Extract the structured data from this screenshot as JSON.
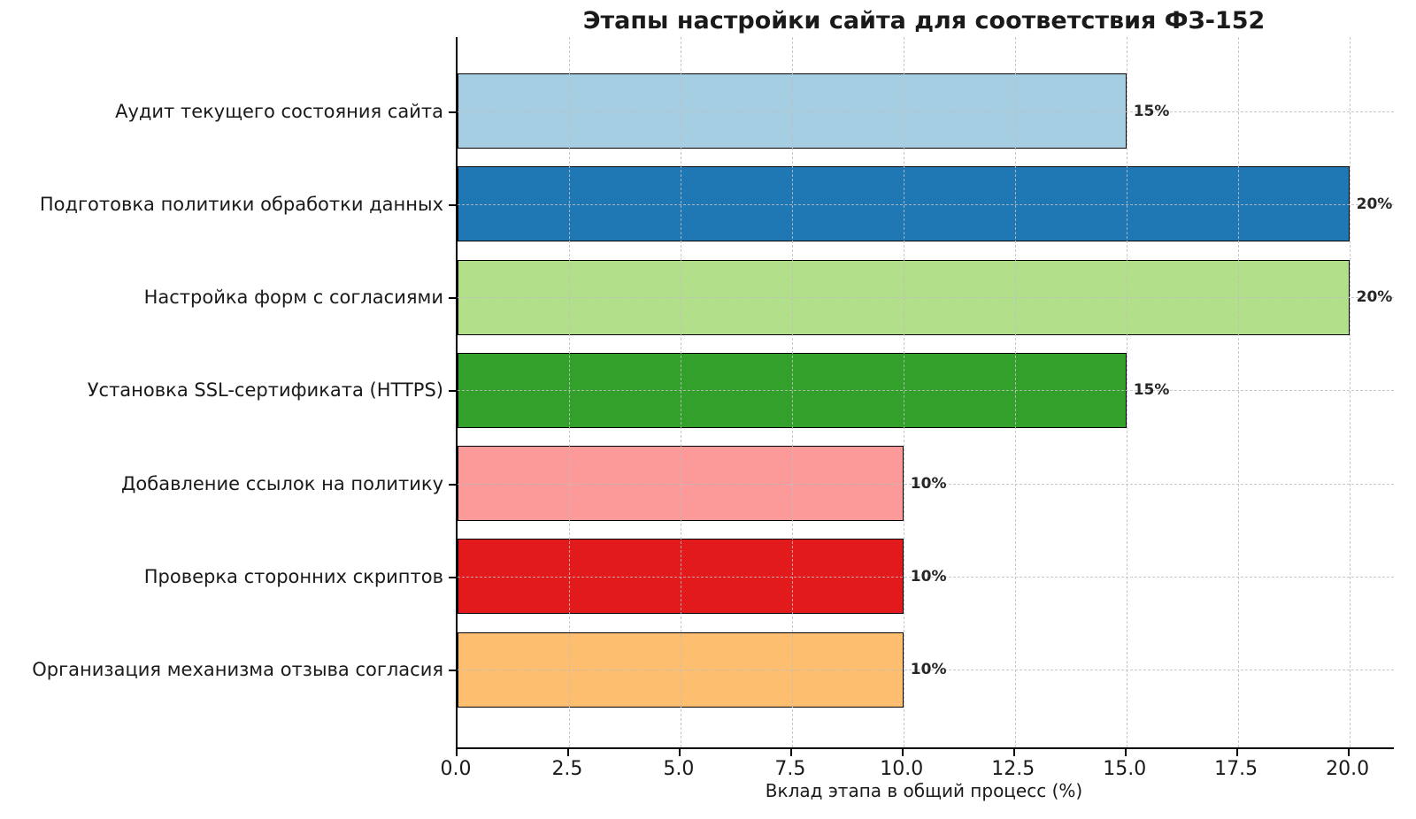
{
  "chart_data": {
    "type": "bar",
    "orientation": "horizontal",
    "title": "Этапы настройки сайта для соответствия ФЗ-152",
    "xlabel": "Вклад этапа в общий процесс (%)",
    "categories": [
      "Аудит текущего состояния сайта",
      "Подготовка политики обработки данных",
      "Настройка форм с согласиями",
      "Установка SSL-сертификата (HTTPS)",
      "Добавление ссылок на политику",
      "Проверка сторонних скриптов",
      "Организация механизма отзыва согласия"
    ],
    "values": [
      15,
      20,
      20,
      15,
      10,
      10,
      10
    ],
    "value_labels": [
      "15%",
      "20%",
      "20%",
      "15%",
      "10%",
      "10%",
      "10%"
    ],
    "bar_colors": [
      "#a6cee3",
      "#1f78b4",
      "#b2df8a",
      "#33a02c",
      "#fb9a99",
      "#e31a1c",
      "#fdbf6f"
    ],
    "bar_edge_color": "#000000",
    "xlim": [
      0,
      21
    ],
    "xticks": [
      {
        "value": 0,
        "label": "0.0"
      },
      {
        "value": 2.5,
        "label": "2.5"
      },
      {
        "value": 5,
        "label": "5.0"
      },
      {
        "value": 7.5,
        "label": "7.5"
      },
      {
        "value": 10,
        "label": "10.0"
      },
      {
        "value": 12.5,
        "label": "12.5"
      },
      {
        "value": 15,
        "label": "15.0"
      },
      {
        "value": 17.5,
        "label": "17.5"
      },
      {
        "value": 20,
        "label": "20.0"
      }
    ],
    "grid": "dashed",
    "legend": "none",
    "background": "#ffffff"
  }
}
